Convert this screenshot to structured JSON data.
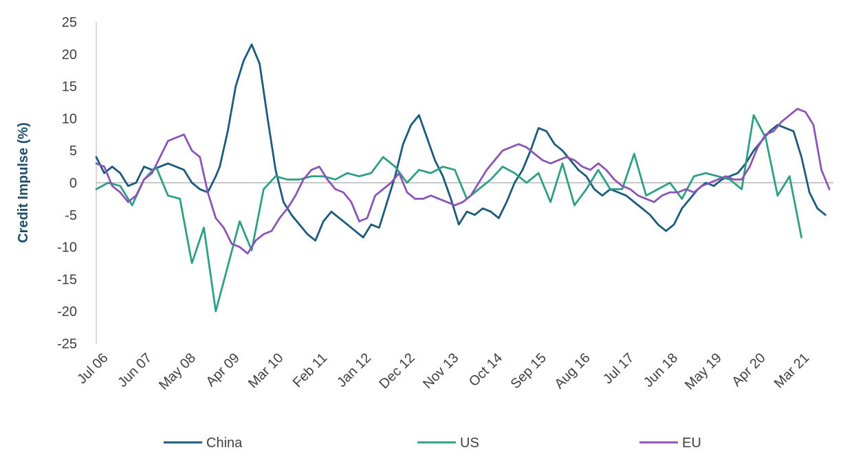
{
  "chart_data": {
    "type": "line",
    "title": "",
    "xlabel": "",
    "ylabel": "Credit Impulse (%)",
    "ylim": [
      -25,
      25
    ],
    "y_ticks": [
      25,
      20,
      15,
      10,
      5,
      0,
      -5,
      -10,
      -15,
      -20,
      -25
    ],
    "x_tick_labels": [
      "Jul 06",
      "Jun 07",
      "May 08",
      "Apr 09",
      "Mar 10",
      "Feb 11",
      "Jan 12",
      "Dec 12",
      "Nov 13",
      "Oct 14",
      "Sep 15",
      "Aug 16",
      "Jul 17",
      "Jun 18",
      "May 19",
      "Apr 20",
      "Mar 21"
    ],
    "x_start": "Jul 06",
    "x_end": "Dec 21",
    "legend": {
      "position": "bottom"
    },
    "grid": false,
    "series": [
      {
        "name": "China",
        "color": "#1b5a7d",
        "points": [
          [
            "2006-07",
            4.0
          ],
          [
            "2006-09",
            1.5
          ],
          [
            "2006-11",
            2.5
          ],
          [
            "2007-01",
            1.5
          ],
          [
            "2007-03",
            -0.5
          ],
          [
            "2007-05",
            0.0
          ],
          [
            "2007-07",
            2.5
          ],
          [
            "2007-09",
            2.0
          ],
          [
            "2007-11",
            2.5
          ],
          [
            "2008-01",
            3.0
          ],
          [
            "2008-03",
            2.5
          ],
          [
            "2008-05",
            2.0
          ],
          [
            "2008-07",
            0.0
          ],
          [
            "2008-09",
            -1.0
          ],
          [
            "2008-11",
            -1.5
          ],
          [
            "2009-01",
            1.0
          ],
          [
            "2009-02",
            2.5
          ],
          [
            "2009-04",
            8.0
          ],
          [
            "2009-06",
            15.0
          ],
          [
            "2009-08",
            19.0
          ],
          [
            "2009-10",
            21.5
          ],
          [
            "2009-12",
            18.5
          ],
          [
            "2010-02",
            10.0
          ],
          [
            "2010-04",
            2.0
          ],
          [
            "2010-06",
            -3.0
          ],
          [
            "2010-08",
            -5.0
          ],
          [
            "2010-10",
            -6.5
          ],
          [
            "2010-12",
            -8.0
          ],
          [
            "2011-02",
            -9.0
          ],
          [
            "2011-04",
            -6.0
          ],
          [
            "2011-06",
            -4.5
          ],
          [
            "2011-08",
            -5.5
          ],
          [
            "2011-10",
            -6.5
          ],
          [
            "2011-12",
            -7.5
          ],
          [
            "2012-02",
            -8.5
          ],
          [
            "2012-04",
            -6.5
          ],
          [
            "2012-06",
            -7.0
          ],
          [
            "2012-08",
            -3.0
          ],
          [
            "2012-10",
            1.0
          ],
          [
            "2012-12",
            6.0
          ],
          [
            "2013-02",
            9.0
          ],
          [
            "2013-04",
            10.5
          ],
          [
            "2013-06",
            7.0
          ],
          [
            "2013-08",
            3.5
          ],
          [
            "2013-10",
            1.0
          ],
          [
            "2013-12",
            -2.5
          ],
          [
            "2014-02",
            -6.5
          ],
          [
            "2014-04",
            -4.5
          ],
          [
            "2014-06",
            -5.0
          ],
          [
            "2014-08",
            -4.0
          ],
          [
            "2014-10",
            -4.5
          ],
          [
            "2014-12",
            -5.5
          ],
          [
            "2015-02",
            -3.0
          ],
          [
            "2015-04",
            0.0
          ],
          [
            "2015-06",
            2.0
          ],
          [
            "2015-08",
            5.0
          ],
          [
            "2015-10",
            8.5
          ],
          [
            "2015-12",
            8.0
          ],
          [
            "2016-02",
            6.0
          ],
          [
            "2016-04",
            5.0
          ],
          [
            "2016-06",
            3.5
          ],
          [
            "2016-08",
            2.0
          ],
          [
            "2016-10",
            1.0
          ],
          [
            "2016-12",
            -1.0
          ],
          [
            "2017-02",
            -2.0
          ],
          [
            "2017-04",
            -1.0
          ],
          [
            "2017-06",
            -1.5
          ],
          [
            "2017-08",
            -2.0
          ],
          [
            "2017-10",
            -3.0
          ],
          [
            "2017-12",
            -4.0
          ],
          [
            "2018-02",
            -5.0
          ],
          [
            "2018-04",
            -6.5
          ],
          [
            "2018-06",
            -7.5
          ],
          [
            "2018-08",
            -6.5
          ],
          [
            "2018-10",
            -4.0
          ],
          [
            "2018-12",
            -2.5
          ],
          [
            "2019-02",
            -1.0
          ],
          [
            "2019-04",
            0.0
          ],
          [
            "2019-06",
            -0.5
          ],
          [
            "2019-08",
            0.5
          ],
          [
            "2019-10",
            1.0
          ],
          [
            "2019-12",
            1.5
          ],
          [
            "2020-02",
            3.0
          ],
          [
            "2020-04",
            5.0
          ],
          [
            "2020-06",
            6.5
          ],
          [
            "2020-08",
            8.0
          ],
          [
            "2020-10",
            9.0
          ],
          [
            "2020-12",
            8.5
          ],
          [
            "2021-02",
            8.0
          ],
          [
            "2021-04",
            4.0
          ],
          [
            "2021-06",
            -1.5
          ],
          [
            "2021-08",
            -4.0
          ],
          [
            "2021-10",
            -5.0
          ]
        ]
      },
      {
        "name": "US",
        "color": "#2e9e84",
        "points": [
          [
            "2006-07",
            -1.0
          ],
          [
            "2006-10",
            0.0
          ],
          [
            "2007-01",
            -0.5
          ],
          [
            "2007-04",
            -3.5
          ],
          [
            "2007-07",
            0.5
          ],
          [
            "2007-10",
            2.5
          ],
          [
            "2008-01",
            -2.0
          ],
          [
            "2008-04",
            -2.5
          ],
          [
            "2008-07",
            -12.5
          ],
          [
            "2008-10",
            -7.0
          ],
          [
            "2009-01",
            -20.0
          ],
          [
            "2009-04",
            -13.0
          ],
          [
            "2009-07",
            -6.0
          ],
          [
            "2009-10",
            -10.5
          ],
          [
            "2010-01",
            -1.0
          ],
          [
            "2010-04",
            1.0
          ],
          [
            "2010-07",
            0.5
          ],
          [
            "2010-10",
            0.5
          ],
          [
            "2011-01",
            1.0
          ],
          [
            "2011-04",
            1.0
          ],
          [
            "2011-07",
            0.5
          ],
          [
            "2011-10",
            1.5
          ],
          [
            "2012-01",
            1.0
          ],
          [
            "2012-04",
            1.5
          ],
          [
            "2012-07",
            4.0
          ],
          [
            "2012-10",
            2.5
          ],
          [
            "2013-01",
            0.0
          ],
          [
            "2013-04",
            2.0
          ],
          [
            "2013-07",
            1.5
          ],
          [
            "2013-10",
            2.5
          ],
          [
            "2014-01",
            2.0
          ],
          [
            "2014-04",
            -2.5
          ],
          [
            "2014-07",
            -1.0
          ],
          [
            "2014-10",
            0.5
          ],
          [
            "2015-01",
            2.5
          ],
          [
            "2015-04",
            1.5
          ],
          [
            "2015-07",
            0.0
          ],
          [
            "2015-10",
            1.5
          ],
          [
            "2016-01",
            -3.0
          ],
          [
            "2016-04",
            3.0
          ],
          [
            "2016-07",
            -3.5
          ],
          [
            "2016-10",
            -1.0
          ],
          [
            "2017-01",
            2.0
          ],
          [
            "2017-04",
            -1.0
          ],
          [
            "2017-07",
            -1.0
          ],
          [
            "2017-10",
            4.5
          ],
          [
            "2018-01",
            -2.0
          ],
          [
            "2018-04",
            -1.0
          ],
          [
            "2018-07",
            0.0
          ],
          [
            "2018-10",
            -2.5
          ],
          [
            "2019-01",
            1.0
          ],
          [
            "2019-04",
            1.5
          ],
          [
            "2019-07",
            1.0
          ],
          [
            "2019-10",
            0.5
          ],
          [
            "2020-01",
            -1.0
          ],
          [
            "2020-04",
            10.5
          ],
          [
            "2020-07",
            7.0
          ],
          [
            "2020-10",
            -2.0
          ],
          [
            "2021-01",
            1.0
          ],
          [
            "2021-04",
            -8.5
          ]
        ]
      },
      {
        "name": "EU",
        "color": "#8c54b4",
        "points": [
          [
            "2006-07",
            3.0
          ],
          [
            "2006-09",
            2.5
          ],
          [
            "2006-11",
            -0.5
          ],
          [
            "2007-01",
            -1.5
          ],
          [
            "2007-03",
            -3.0
          ],
          [
            "2007-05",
            -2.0
          ],
          [
            "2007-07",
            0.5
          ],
          [
            "2007-09",
            1.5
          ],
          [
            "2007-11",
            4.0
          ],
          [
            "2008-01",
            6.5
          ],
          [
            "2008-03",
            7.0
          ],
          [
            "2008-05",
            7.5
          ],
          [
            "2008-07",
            5.0
          ],
          [
            "2008-09",
            4.0
          ],
          [
            "2008-11",
            -1.5
          ],
          [
            "2009-01",
            -5.5
          ],
          [
            "2009-03",
            -7.0
          ],
          [
            "2009-05",
            -9.5
          ],
          [
            "2009-07",
            -10.0
          ],
          [
            "2009-09",
            -11.0
          ],
          [
            "2009-11",
            -9.0
          ],
          [
            "2010-01",
            -8.0
          ],
          [
            "2010-03",
            -7.5
          ],
          [
            "2010-05",
            -5.5
          ],
          [
            "2010-07",
            -4.0
          ],
          [
            "2010-09",
            -2.0
          ],
          [
            "2010-11",
            0.5
          ],
          [
            "2011-01",
            2.0
          ],
          [
            "2011-03",
            2.5
          ],
          [
            "2011-05",
            0.5
          ],
          [
            "2011-07",
            -1.0
          ],
          [
            "2011-09",
            -1.5
          ],
          [
            "2011-11",
            -3.0
          ],
          [
            "2012-01",
            -6.0
          ],
          [
            "2012-03",
            -5.5
          ],
          [
            "2012-05",
            -2.0
          ],
          [
            "2012-07",
            -1.0
          ],
          [
            "2012-09",
            0.0
          ],
          [
            "2012-11",
            1.5
          ],
          [
            "2013-01",
            -1.5
          ],
          [
            "2013-03",
            -2.5
          ],
          [
            "2013-05",
            -2.5
          ],
          [
            "2013-07",
            -2.0
          ],
          [
            "2013-09",
            -2.5
          ],
          [
            "2013-11",
            -3.0
          ],
          [
            "2014-01",
            -3.5
          ],
          [
            "2014-03",
            -3.0
          ],
          [
            "2014-05",
            -2.0
          ],
          [
            "2014-07",
            0.0
          ],
          [
            "2014-09",
            2.0
          ],
          [
            "2014-11",
            3.5
          ],
          [
            "2015-01",
            5.0
          ],
          [
            "2015-03",
            5.5
          ],
          [
            "2015-05",
            6.0
          ],
          [
            "2015-07",
            5.5
          ],
          [
            "2015-09",
            4.5
          ],
          [
            "2015-11",
            3.5
          ],
          [
            "2016-01",
            3.0
          ],
          [
            "2016-03",
            3.5
          ],
          [
            "2016-05",
            4.0
          ],
          [
            "2016-07",
            3.5
          ],
          [
            "2016-09",
            2.5
          ],
          [
            "2016-11",
            2.0
          ],
          [
            "2017-01",
            3.0
          ],
          [
            "2017-03",
            2.0
          ],
          [
            "2017-05",
            0.5
          ],
          [
            "2017-07",
            -0.5
          ],
          [
            "2017-09",
            -1.0
          ],
          [
            "2017-11",
            -2.0
          ],
          [
            "2018-01",
            -2.5
          ],
          [
            "2018-03",
            -3.0
          ],
          [
            "2018-05",
            -2.0
          ],
          [
            "2018-07",
            -1.5
          ],
          [
            "2018-09",
            -1.5
          ],
          [
            "2018-11",
            -1.0
          ],
          [
            "2019-01",
            -1.5
          ],
          [
            "2019-03",
            -0.5
          ],
          [
            "2019-05",
            0.0
          ],
          [
            "2019-07",
            0.5
          ],
          [
            "2019-09",
            1.0
          ],
          [
            "2019-11",
            0.5
          ],
          [
            "2020-01",
            0.5
          ],
          [
            "2020-03",
            2.5
          ],
          [
            "2020-05",
            5.5
          ],
          [
            "2020-07",
            7.5
          ],
          [
            "2020-09",
            8.0
          ],
          [
            "2020-11",
            9.5
          ],
          [
            "2021-01",
            10.5
          ],
          [
            "2021-03",
            11.5
          ],
          [
            "2021-05",
            11.0
          ],
          [
            "2021-07",
            9.0
          ],
          [
            "2021-09",
            2.0
          ],
          [
            "2021-11",
            -1.0
          ]
        ]
      }
    ]
  }
}
